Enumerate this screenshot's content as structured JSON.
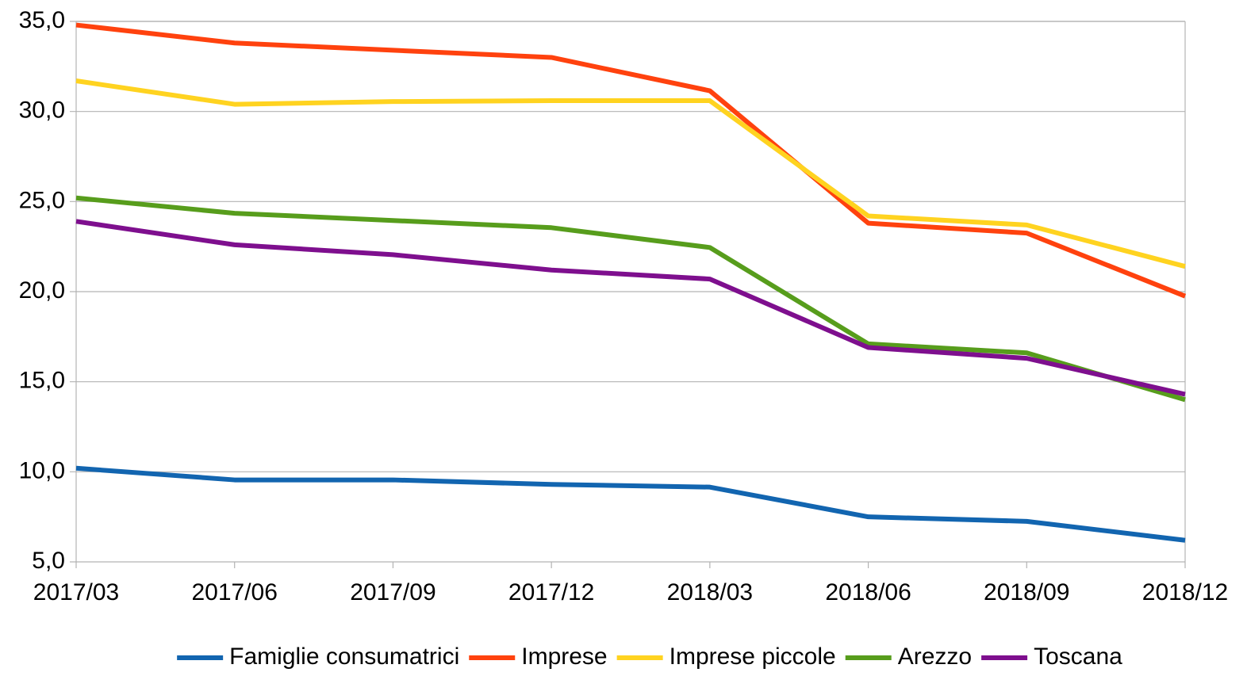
{
  "chart_data": {
    "type": "line",
    "categories": [
      "2017/03",
      "2017/06",
      "2017/09",
      "2017/12",
      "2018/03",
      "2018/06",
      "2018/09",
      "2018/12"
    ],
    "series": [
      {
        "name": "Famiglie consumatrici",
        "color": "#1265b0",
        "values": [
          10.2,
          9.55,
          9.55,
          9.3,
          9.15,
          7.5,
          7.25,
          6.2
        ]
      },
      {
        "name": "Imprese",
        "color": "#ff420e",
        "values": [
          34.8,
          33.8,
          33.4,
          33.0,
          31.15,
          23.8,
          23.25,
          19.75
        ]
      },
      {
        "name": "Imprese piccole",
        "color": "#ffd320",
        "values": [
          31.7,
          30.4,
          30.55,
          30.6,
          30.6,
          24.2,
          23.7,
          21.4
        ]
      },
      {
        "name": "Arezzo",
        "color": "#579d1c",
        "values": [
          25.2,
          24.35,
          23.95,
          23.55,
          22.45,
          17.1,
          16.6,
          14.0
        ]
      },
      {
        "name": "Toscana",
        "color": "#7e0f8e",
        "values": [
          23.9,
          22.6,
          22.05,
          21.2,
          20.7,
          16.9,
          16.3,
          14.3
        ]
      }
    ],
    "ylim": [
      5,
      35
    ],
    "yticks": [
      {
        "value": 5,
        "label": "5,0"
      },
      {
        "value": 10,
        "label": "10,0"
      },
      {
        "value": 15,
        "label": "15,0"
      },
      {
        "value": 20,
        "label": "20,0"
      },
      {
        "value": 25,
        "label": "25,0"
      },
      {
        "value": 30,
        "label": "30,0"
      },
      {
        "value": 35,
        "label": "35,0"
      }
    ],
    "grid": true,
    "legend": "bottom"
  }
}
